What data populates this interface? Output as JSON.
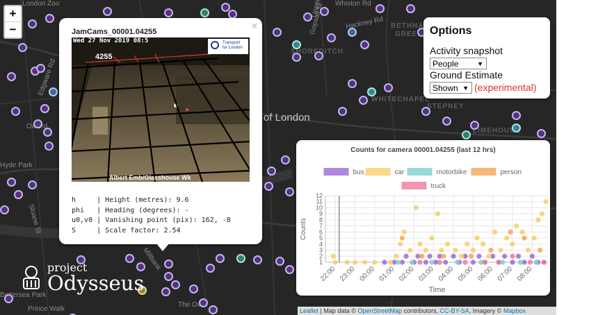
{
  "map": {
    "labels": [
      {
        "text": "London Zoo",
        "cls": ""
      },
      {
        "text": "Whiston Rd",
        "cls": ""
      },
      {
        "text": "Hackney Rd",
        "cls": ""
      },
      {
        "text": "Gopsall St",
        "cls": ""
      },
      {
        "text": "BETHNAL",
        "cls": "dim"
      },
      {
        "text": "GREEN",
        "cls": "dim"
      },
      {
        "text": "SHOREDITCH",
        "cls": "dim"
      },
      {
        "text": "WHITECHAPEL",
        "cls": "dim"
      },
      {
        "text": "STEPNEY",
        "cls": "dim"
      },
      {
        "text": "LIMEHOUSE",
        "cls": "dim"
      },
      {
        "text": "of London",
        "cls": "big"
      },
      {
        "text": "Hyde Park",
        "cls": ""
      },
      {
        "text": "Oxford",
        "cls": ""
      },
      {
        "text": "Sloane St",
        "cls": ""
      },
      {
        "text": "Millbank",
        "cls": ""
      },
      {
        "text": "The Oval",
        "cls": ""
      },
      {
        "text": "Battersea Park",
        "cls": ""
      },
      {
        "text": "Prince Walk",
        "cls": ""
      },
      {
        "text": "Edgware Rd",
        "cls": ""
      },
      {
        "text": "Upper St",
        "cls": ""
      }
    ]
  },
  "zoom": {
    "in_label": "+",
    "out_label": "−"
  },
  "popup": {
    "close_label": "×",
    "title": "JamCams_00001.04255",
    "camera": {
      "timestamp": "Wed 27 Nov 2019 08:5",
      "number": "4255",
      "street": "Albert Emb/Glasshouse Wk",
      "tfl_text": "Transport for London"
    },
    "params": [
      {
        "sym": "h     ",
        "desc": "Height (metres): 9.6"
      },
      {
        "sym": "phi   ",
        "desc": "Heading (degrees): -"
      },
      {
        "sym": "u0,v0 ",
        "desc": "Vanishing point (pix): 162, -8"
      },
      {
        "sym": "S     ",
        "desc": "Scale factor: 2.54"
      }
    ]
  },
  "options": {
    "title": "Options",
    "activity_label": "Activity snapshot",
    "activity_value": "People",
    "ground_label": "Ground Estimate",
    "ground_value": "Shown",
    "experimental_label": "(experimental)",
    "experimental_color": "#d9342b"
  },
  "chart_data": {
    "type": "scatter",
    "title": "Counts for camera 00001.04255 (last 12 hrs)",
    "xlabel": "Time",
    "ylabel": "Counts",
    "x_ticks": [
      "22:00",
      "23:00",
      "00:00",
      "01:00",
      "02:00",
      "03:00",
      "04:00",
      "05:00",
      "06:00",
      "07:00",
      "08:00"
    ],
    "y_ticks": [
      1,
      2,
      3,
      4,
      5,
      6,
      7,
      8,
      9,
      10,
      11,
      12
    ],
    "ylim": [
      1,
      12
    ],
    "xlim": [
      21.5,
      32.8
    ],
    "grid": true,
    "legend_position": "top",
    "series": [
      {
        "name": "bus",
        "color": "#9b6ad9",
        "points": [
          [
            24.5,
            1
          ],
          [
            25.0,
            1
          ],
          [
            25.4,
            1
          ],
          [
            25.6,
            2
          ],
          [
            26.0,
            1
          ],
          [
            26.2,
            2
          ],
          [
            26.6,
            1
          ],
          [
            26.8,
            2
          ],
          [
            27.1,
            1
          ],
          [
            27.3,
            2
          ],
          [
            27.6,
            1
          ],
          [
            28.0,
            2
          ],
          [
            28.3,
            1
          ],
          [
            28.6,
            2
          ],
          [
            29.0,
            1
          ],
          [
            29.3,
            2
          ],
          [
            29.6,
            1
          ],
          [
            30.0,
            2
          ],
          [
            30.3,
            1
          ],
          [
            30.6,
            2
          ],
          [
            31.0,
            1
          ],
          [
            31.3,
            2
          ],
          [
            31.6,
            1
          ],
          [
            32.0,
            2
          ],
          [
            32.3,
            1
          ],
          [
            32.6,
            1
          ]
        ]
      },
      {
        "name": "car",
        "color": "#f5cf6a",
        "points": [
          [
            21.9,
            2
          ],
          [
            22.0,
            1
          ],
          [
            22.6,
            1
          ],
          [
            23.0,
            1
          ],
          [
            23.5,
            1
          ],
          [
            24.0,
            1
          ],
          [
            24.8,
            1
          ],
          [
            25.1,
            2
          ],
          [
            25.3,
            4
          ],
          [
            25.5,
            6
          ],
          [
            25.8,
            3
          ],
          [
            26.1,
            10
          ],
          [
            26.3,
            4
          ],
          [
            26.6,
            3
          ],
          [
            26.9,
            5
          ],
          [
            27.2,
            9
          ],
          [
            27.4,
            3
          ],
          [
            27.7,
            4
          ],
          [
            28.1,
            3
          ],
          [
            28.4,
            2
          ],
          [
            28.7,
            4
          ],
          [
            29.0,
            3
          ],
          [
            29.2,
            5
          ],
          [
            29.5,
            4
          ],
          [
            29.8,
            2
          ],
          [
            30.1,
            6
          ],
          [
            30.4,
            3
          ],
          [
            30.7,
            5
          ],
          [
            31.0,
            4
          ],
          [
            31.2,
            7
          ],
          [
            31.5,
            6
          ],
          [
            31.8,
            3
          ],
          [
            32.1,
            5
          ],
          [
            32.3,
            8
          ],
          [
            32.5,
            9
          ],
          [
            32.7,
            11
          ]
        ]
      },
      {
        "name": "motorbike",
        "color": "#7fcfcf",
        "points": [
          [
            25.2,
            1
          ],
          [
            25.9,
            1
          ],
          [
            26.9,
            1
          ],
          [
            28.2,
            1
          ],
          [
            29.4,
            1
          ],
          [
            30.5,
            1
          ],
          [
            31.4,
            1
          ],
          [
            32.2,
            1
          ]
        ]
      },
      {
        "name": "person",
        "color": "#f5a55a",
        "points": [
          [
            25.4,
            5
          ],
          [
            26.4,
            2
          ],
          [
            27.5,
            2
          ],
          [
            28.9,
            2
          ],
          [
            29.9,
            3
          ],
          [
            30.9,
            6
          ],
          [
            31.6,
            5
          ],
          [
            32.4,
            3
          ]
        ]
      },
      {
        "name": "truck",
        "color": "#f07a9a",
        "points": [
          [
            26.3,
            1
          ],
          [
            27.3,
            1
          ],
          [
            28.6,
            1
          ],
          [
            29.6,
            1
          ],
          [
            30.3,
            1
          ],
          [
            31.0,
            2
          ],
          [
            31.9,
            1
          ],
          [
            32.6,
            1
          ]
        ]
      }
    ]
  },
  "attribution": {
    "leaflet": "Leaflet",
    "mid1": " | Map data © ",
    "osm": "OpenStreetMap",
    "mid2": " contributors, ",
    "cc": "CC-BY-SA",
    "mid3": ", Imagery © ",
    "mapbox": "Mapbox"
  },
  "logo": {
    "small": "project",
    "big": "Odysseus"
  }
}
